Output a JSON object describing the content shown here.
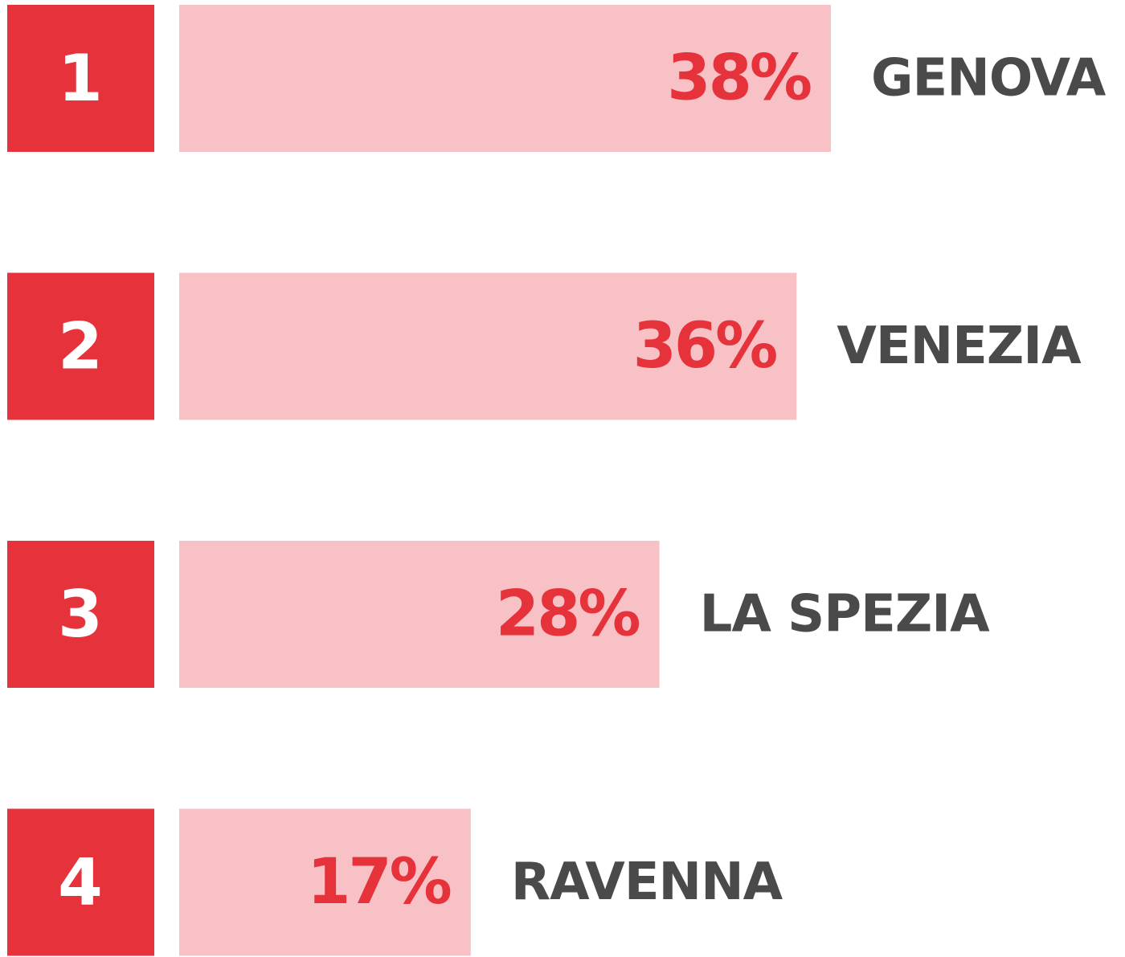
{
  "chart_data": {
    "type": "bar",
    "ranks": [
      1,
      2,
      3,
      4
    ],
    "categories": [
      "GENOVA",
      "VENEZIA",
      "LA SPEZIA",
      "RAVENNA"
    ],
    "values": [
      38,
      36,
      28,
      17
    ],
    "value_labels": [
      "38%",
      "36%",
      "28%",
      "17%"
    ],
    "color": "#f7c1c5",
    "rank_color": "#e5323b"
  }
}
